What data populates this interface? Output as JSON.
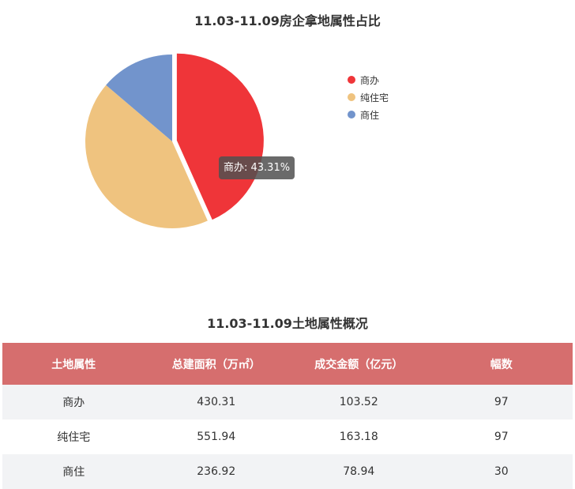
{
  "chart_data": {
    "type": "pie",
    "title": "11.03-11.09房企拿地属性占比",
    "categories": [
      "商办",
      "纯住宅",
      "商住"
    ],
    "values": [
      43.31,
      42.91,
      13.78
    ],
    "unit": "%",
    "colors": [
      "#ef3539",
      "#efc37f",
      "#7294cc"
    ],
    "legend_placement": "right",
    "highlighted": 0,
    "tooltip": "商办: 43.31%"
  },
  "table": {
    "title": "11.03-11.09土地属性概况",
    "headers": [
      "土地属性",
      "总建面积（万㎡）",
      "成交金额（亿元）",
      "幅数"
    ],
    "rows": [
      [
        "商办",
        "430.31",
        "103.52",
        "97"
      ],
      [
        "纯住宅",
        "551.94",
        "163.18",
        "97"
      ],
      [
        "商住",
        "236.92",
        "78.94",
        "30"
      ]
    ]
  }
}
